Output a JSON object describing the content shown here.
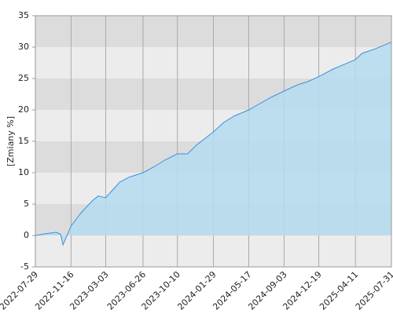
{
  "chart_data": {
    "type": "area",
    "y_label": "[Zmiany %]",
    "x": [
      "2022-07-29",
      "2022-09-01",
      "2022-10-01",
      "2022-10-15",
      "2022-10-22",
      "2022-10-28",
      "2022-11-16",
      "2022-12-15",
      "2023-01-20",
      "2023-02-08",
      "2023-03-03",
      "2023-03-20",
      "2023-04-15",
      "2023-05-15",
      "2023-06-26",
      "2023-08-01",
      "2023-09-01",
      "2023-10-10",
      "2023-11-10",
      "2023-12-10",
      "2024-01-29",
      "2024-03-01",
      "2024-04-01",
      "2024-05-17",
      "2024-06-20",
      "2024-07-25",
      "2024-09-03",
      "2024-10-15",
      "2024-11-15",
      "2024-12-19",
      "2025-02-01",
      "2025-03-10",
      "2025-04-11",
      "2025-05-01",
      "2025-06-10",
      "2025-07-31"
    ],
    "series": [
      {
        "color": "#3d8fe0",
        "fill": "#b5dcef",
        "values": [
          0,
          0.3,
          0.5,
          0.2,
          -1.5,
          -0.8,
          1.5,
          3.5,
          5.5,
          6.3,
          6,
          7,
          8.5,
          9.3,
          10,
          11,
          12,
          13,
          13,
          14.5,
          16.5,
          18,
          19,
          20,
          21,
          22,
          23,
          24,
          24.5,
          25.3,
          26.5,
          27.3,
          28,
          29,
          29.7,
          30.8
        ]
      }
    ],
    "xlim": [
      "2022-07-29",
      "2025-07-31"
    ],
    "xticks": [
      "2022-07-29",
      "2022-11-16",
      "2023-03-03",
      "2023-06-26",
      "2023-10-10",
      "2024-01-29",
      "2024-05-17",
      "2024-09-03",
      "2024-12-19",
      "2025-04-11",
      "2025-07-31"
    ],
    "ylim": [
      -5,
      35
    ],
    "yticks": [
      -5,
      0,
      5,
      10,
      15,
      20,
      25,
      30,
      35
    ],
    "grid": true
  }
}
